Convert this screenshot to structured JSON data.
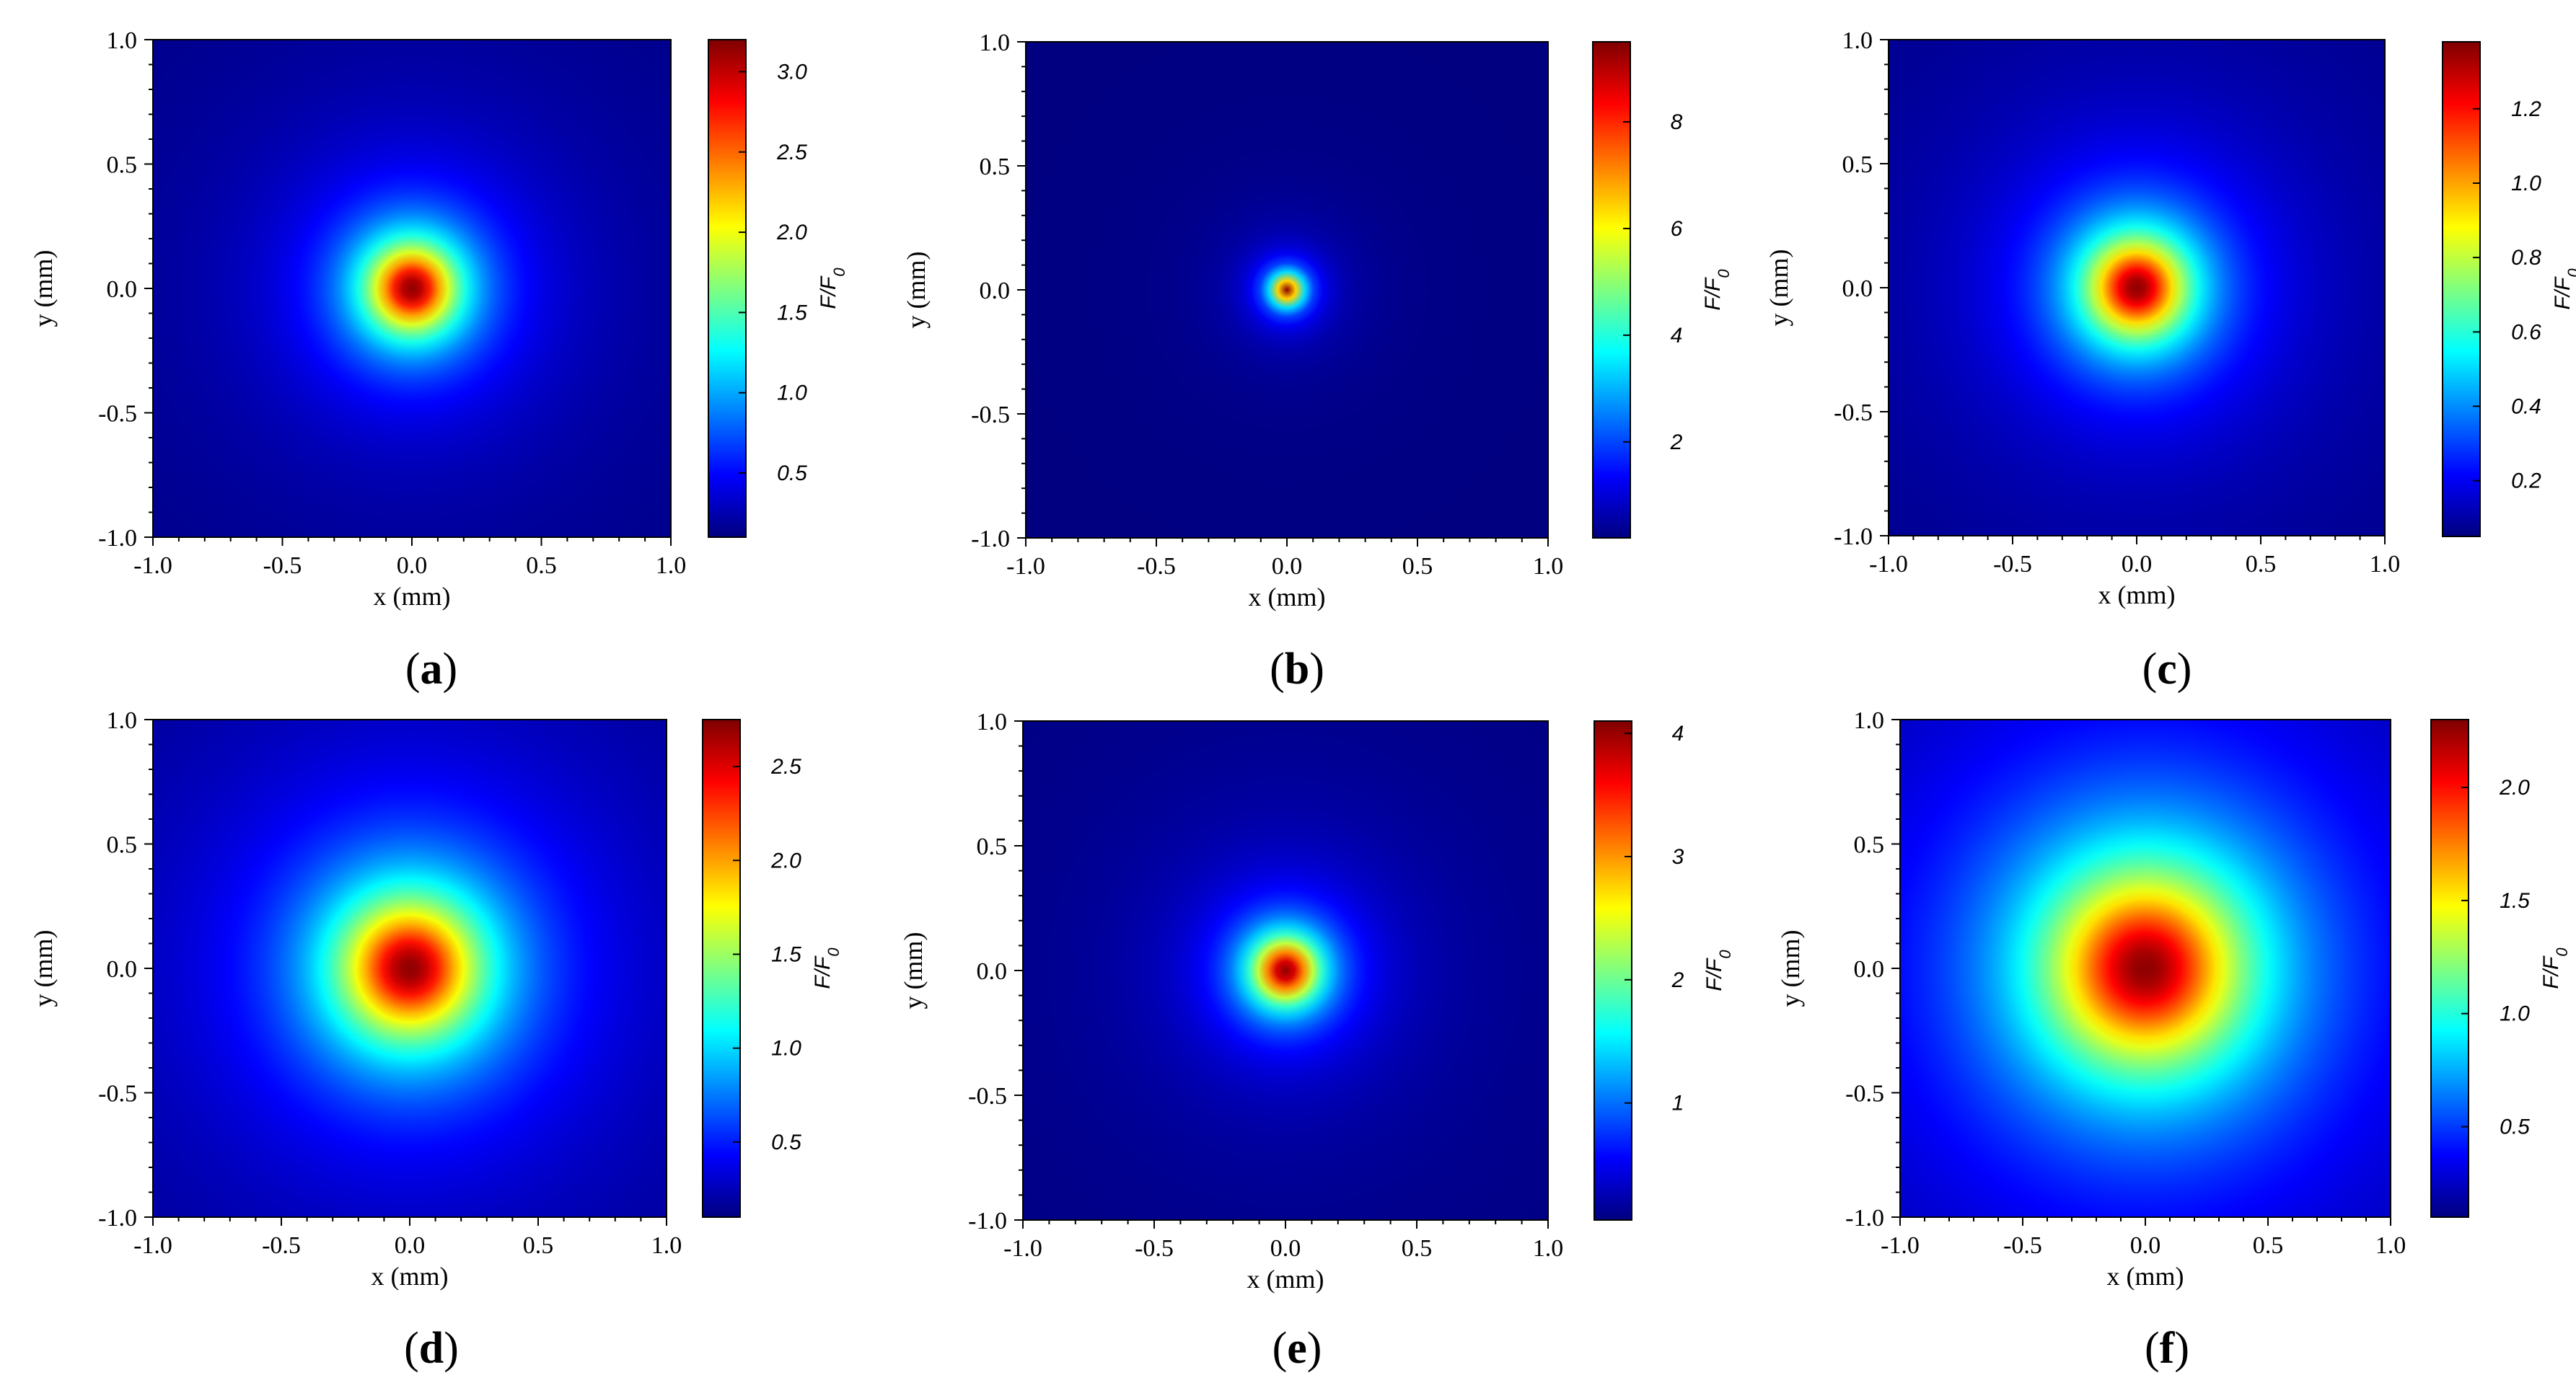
{
  "figure": {
    "background": "#ffffff"
  },
  "colormap": [
    "#00007f",
    "#0000ff",
    "#007fff",
    "#00ffff",
    "#7fff7f",
    "#ffff00",
    "#ff7f00",
    "#ff0000",
    "#7f0000"
  ],
  "chart_data": [
    {
      "type": "heatmap",
      "panel_label": "a",
      "xlabel": "x (mm)",
      "ylabel": "y (mm)",
      "xlim": [
        -1.0,
        1.0
      ],
      "ylim": [
        -1.0,
        1.0
      ],
      "x_ticks": [
        "-1.0",
        "-0.5",
        "0.0",
        "0.5",
        "1.0"
      ],
      "y_ticks": [
        "-1.0",
        "-0.5",
        "0.0",
        "0.5",
        "1.0"
      ],
      "colorbar": {
        "label": "F/F0",
        "min": 0.1,
        "max": 3.2,
        "ticks": [
          "0.5",
          "1.0",
          "1.5",
          "2.0",
          "2.5",
          "3.0"
        ]
      },
      "peak": {
        "x": 0.0,
        "y": 0.0,
        "value": 3.2
      },
      "spot_radius_mm": 0.17,
      "background_value": 0.1
    },
    {
      "type": "heatmap",
      "panel_label": "b",
      "xlabel": "x (mm)",
      "ylabel": "y (mm)",
      "xlim": [
        -1.0,
        1.0
      ],
      "ylim": [
        -1.0,
        1.0
      ],
      "x_ticks": [
        "-1.0",
        "-0.5",
        "0.0",
        "0.5",
        "1.0"
      ],
      "y_ticks": [
        "-1.0",
        "-0.5",
        "0.0",
        "0.5",
        "1.0"
      ],
      "colorbar": {
        "label": "F/F0",
        "min": 0.2,
        "max": 9.5,
        "ticks": [
          "2",
          "4",
          "6",
          "8"
        ]
      },
      "peak": {
        "x": 0.0,
        "y": 0.0,
        "value": 9.5
      },
      "spot_radius_mm": 0.05,
      "background_value": 0.2
    },
    {
      "type": "heatmap",
      "panel_label": "c",
      "xlabel": "x (mm)",
      "ylabel": "y (mm)",
      "xlim": [
        -1.0,
        1.0
      ],
      "ylim": [
        -1.0,
        1.0
      ],
      "x_ticks": [
        "-1.0",
        "-0.5",
        "0.0",
        "0.5",
        "1.0"
      ],
      "y_ticks": [
        "-1.0",
        "-0.5",
        "0.0",
        "0.5",
        "1.0"
      ],
      "colorbar": {
        "label": "F/F0",
        "min": 0.05,
        "max": 1.38,
        "ticks": [
          "0.2",
          "0.4",
          "0.6",
          "0.8",
          "1.0",
          "1.2"
        ]
      },
      "peak": {
        "x": 0.0,
        "y": 0.0,
        "value": 1.38
      },
      "spot_radius_mm": 0.2,
      "background_value": 0.05
    },
    {
      "type": "heatmap",
      "panel_label": "d",
      "xlabel": "x (mm)",
      "ylabel": "y (mm)",
      "xlim": [
        -1.0,
        1.0
      ],
      "ylim": [
        -1.0,
        1.0
      ],
      "x_ticks": [
        "-1.0",
        "-0.5",
        "0.0",
        "0.5",
        "1.0"
      ],
      "y_ticks": [
        "-1.0",
        "-0.5",
        "0.0",
        "0.5",
        "1.0"
      ],
      "colorbar": {
        "label": "F/F0",
        "min": 0.1,
        "max": 2.75,
        "ticks": [
          "0.5",
          "1.0",
          "1.5",
          "2.0",
          "2.5"
        ]
      },
      "peak": {
        "x": 0.0,
        "y": 0.0,
        "value": 2.75
      },
      "spot_radius_mm": 0.27,
      "background_value": 0.1
    },
    {
      "type": "heatmap",
      "panel_label": "e",
      "xlabel": "x (mm)",
      "ylabel": "y (mm)",
      "xlim": [
        -1.0,
        1.0
      ],
      "ylim": [
        -1.0,
        1.0
      ],
      "x_ticks": [
        "-1.0",
        "-0.5",
        "0.0",
        "0.5",
        "1.0"
      ],
      "y_ticks": [
        "-1.0",
        "-0.5",
        "0.0",
        "0.5",
        "1.0"
      ],
      "colorbar": {
        "label": "F/F0",
        "min": 0.05,
        "max": 4.1,
        "ticks": [
          "1",
          "2",
          "3",
          "4"
        ]
      },
      "peak": {
        "x": 0.0,
        "y": 0.0,
        "value": 4.1
      },
      "spot_radius_mm": 0.12,
      "background_value": 0.05
    },
    {
      "type": "heatmap",
      "panel_label": "f",
      "xlabel": "x (mm)",
      "ylabel": "y (mm)",
      "xlim": [
        -1.0,
        1.0
      ],
      "ylim": [
        -1.0,
        1.0
      ],
      "x_ticks": [
        "-1.0",
        "-0.5",
        "0.0",
        "0.5",
        "1.0"
      ],
      "y_ticks": [
        "-1.0",
        "-0.5",
        "0.0",
        "0.5",
        "1.0"
      ],
      "colorbar": {
        "label": "F/F0",
        "min": 0.1,
        "max": 2.3,
        "ticks": [
          "0.5",
          "1.0",
          "1.5",
          "2.0"
        ]
      },
      "peak": {
        "x": 0.0,
        "y": 0.0,
        "value": 2.3
      },
      "spot_radius_mm": 0.4,
      "background_value": 0.1
    }
  ]
}
